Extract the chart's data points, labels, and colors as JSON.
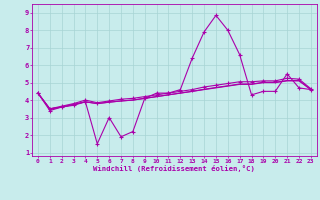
{
  "xlabel": "Windchill (Refroidissement éolien,°C)",
  "background_color": "#c8ecec",
  "grid_color": "#a8d4d4",
  "line_color": "#aa00aa",
  "xlim": [
    -0.5,
    23.5
  ],
  "ylim": [
    0.8,
    9.5
  ],
  "xticks": [
    0,
    1,
    2,
    3,
    4,
    5,
    6,
    7,
    8,
    9,
    10,
    11,
    12,
    13,
    14,
    15,
    16,
    17,
    18,
    19,
    20,
    21,
    22,
    23
  ],
  "yticks": [
    1,
    2,
    3,
    4,
    5,
    6,
    7,
    8,
    9
  ],
  "line1_x": [
    0,
    1,
    2,
    3,
    4,
    5,
    6,
    7,
    8,
    9,
    10,
    11,
    12,
    13,
    14,
    15,
    16,
    17,
    18,
    19,
    20,
    21,
    22,
    23
  ],
  "line1_y": [
    4.4,
    3.4,
    3.6,
    3.7,
    3.9,
    1.5,
    3.0,
    1.9,
    2.2,
    4.1,
    4.4,
    4.4,
    4.6,
    6.4,
    7.9,
    8.85,
    8.0,
    6.6,
    4.3,
    4.5,
    4.5,
    5.5,
    4.7,
    4.6
  ],
  "line2_x": [
    0,
    1,
    2,
    3,
    4,
    5,
    6,
    7,
    8,
    9,
    10,
    11,
    12,
    13,
    14,
    15,
    16,
    17,
    18,
    19,
    20,
    21,
    22,
    23
  ],
  "line2_y": [
    4.4,
    3.5,
    3.65,
    3.8,
    4.0,
    3.85,
    3.95,
    4.05,
    4.1,
    4.2,
    4.3,
    4.4,
    4.5,
    4.6,
    4.75,
    4.85,
    4.95,
    5.05,
    5.05,
    5.1,
    5.1,
    5.25,
    5.2,
    4.65
  ],
  "line3_x": [
    0,
    1,
    2,
    3,
    4,
    5,
    6,
    7,
    8,
    9,
    10,
    11,
    12,
    13,
    14,
    15,
    16,
    17,
    18,
    19,
    20,
    21,
    22,
    23
  ],
  "line3_y": [
    4.4,
    3.5,
    3.6,
    3.75,
    3.9,
    3.8,
    3.88,
    3.95,
    4.0,
    4.1,
    4.2,
    4.3,
    4.4,
    4.5,
    4.6,
    4.7,
    4.8,
    4.9,
    4.9,
    5.0,
    5.0,
    5.1,
    5.1,
    4.6
  ],
  "line4_x": [
    0,
    1,
    2,
    3,
    4,
    5,
    6,
    7,
    8,
    9,
    10,
    11,
    12,
    13,
    14,
    15,
    16,
    17,
    18,
    19,
    20,
    21,
    22,
    23
  ],
  "line4_y": [
    4.4,
    3.5,
    3.6,
    3.75,
    3.9,
    3.8,
    3.88,
    3.95,
    4.0,
    4.1,
    4.2,
    4.3,
    4.4,
    4.5,
    4.62,
    4.72,
    4.82,
    4.92,
    4.92,
    5.02,
    5.02,
    5.12,
    5.12,
    4.6
  ]
}
